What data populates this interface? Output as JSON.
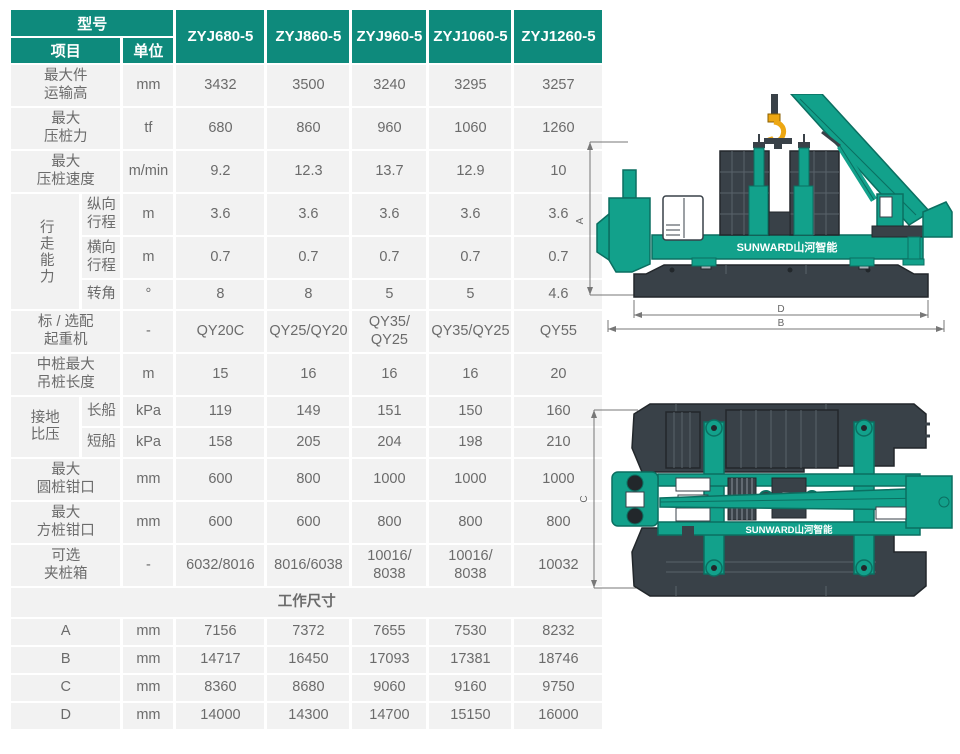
{
  "brand": {
    "logo_text": "SUNWARD山河智能"
  },
  "colors": {
    "header_teal": "#0e8a7c",
    "row_bg": "#f2f2f2",
    "machine_teal": "#12a18b",
    "machine_dark": "#394148",
    "hook_orange": "#eda712"
  },
  "table": {
    "header": {
      "model_label": "型号",
      "item_label": "项目",
      "unit_label": "单位",
      "models": [
        "ZYJ680-5",
        "ZYJ860-5",
        "ZYJ960-5",
        "ZYJ1060-5",
        "ZYJ1260-5"
      ]
    },
    "rows": [
      {
        "label": "最大件\n运输高",
        "unit": "mm",
        "values": [
          "3432",
          "3500",
          "3240",
          "3295",
          "3257"
        ]
      },
      {
        "label": "最大\n压桩力",
        "unit": "tf",
        "values": [
          "680",
          "860",
          "960",
          "1060",
          "1260"
        ]
      },
      {
        "label": "最大\n压桩速度",
        "unit": "m/min",
        "values": [
          "9.2",
          "12.3",
          "13.7",
          "12.9",
          "10"
        ]
      },
      {
        "group": "行走能力",
        "group_span": 3,
        "group_vertical": true,
        "label": "纵向\n行程",
        "unit": "m",
        "values": [
          "3.6",
          "3.6",
          "3.6",
          "3.6",
          "3.6"
        ]
      },
      {
        "sub": true,
        "label": "横向\n行程",
        "unit": "m",
        "values": [
          "0.7",
          "0.7",
          "0.7",
          "0.7",
          "0.7"
        ]
      },
      {
        "sub": true,
        "label": "转角",
        "unit": "°",
        "values": [
          "8",
          "8",
          "5",
          "5",
          "4.6"
        ]
      },
      {
        "label": "标 / 选配\n起重机",
        "unit": "-",
        "values": [
          "QY20C",
          "QY25/QY20",
          "QY35/\nQY25",
          "QY35/QY25",
          "QY55"
        ]
      },
      {
        "label": "中桩最大\n吊桩长度",
        "unit": "m",
        "values": [
          "15",
          "16",
          "16",
          "16",
          "20"
        ]
      },
      {
        "group": "接地\n比压",
        "group_span": 2,
        "group_vertical": false,
        "label": "长船",
        "unit": "kPa",
        "values": [
          "119",
          "149",
          "151",
          "150",
          "160"
        ]
      },
      {
        "sub": true,
        "label": "短船",
        "unit": "kPa",
        "values": [
          "158",
          "205",
          "204",
          "198",
          "210"
        ]
      },
      {
        "label": "最大\n圆桩钳口",
        "unit": "mm",
        "values": [
          "600",
          "800",
          "1000",
          "1000",
          "1000"
        ]
      },
      {
        "label": "最大\n方桩钳口",
        "unit": "mm",
        "values": [
          "600",
          "600",
          "800",
          "800",
          "800"
        ]
      },
      {
        "label": "可选\n夹桩箱",
        "unit": "-",
        "values": [
          "6032/8016",
          "8016/6038",
          "10016/\n8038",
          "10016/\n8038",
          "10032"
        ]
      }
    ],
    "work_size_header": "工作尺寸",
    "work_rows": [
      {
        "label": "A",
        "unit": "mm",
        "values": [
          "7156",
          "7372",
          "7655",
          "7530",
          "8232"
        ]
      },
      {
        "label": "B",
        "unit": "mm",
        "values": [
          "14717",
          "16450",
          "17093",
          "17381",
          "18746"
        ]
      },
      {
        "label": "C",
        "unit": "mm",
        "values": [
          "8360",
          "8680",
          "9060",
          "9160",
          "9750"
        ]
      },
      {
        "label": "D",
        "unit": "mm",
        "values": [
          "14000",
          "14300",
          "14700",
          "15150",
          "16000"
        ]
      }
    ]
  },
  "drawings": {
    "side_view": {
      "dim_a": "A",
      "dim_d": "D",
      "dim_b": "B"
    },
    "top_view": {
      "dim_c": "C"
    }
  }
}
